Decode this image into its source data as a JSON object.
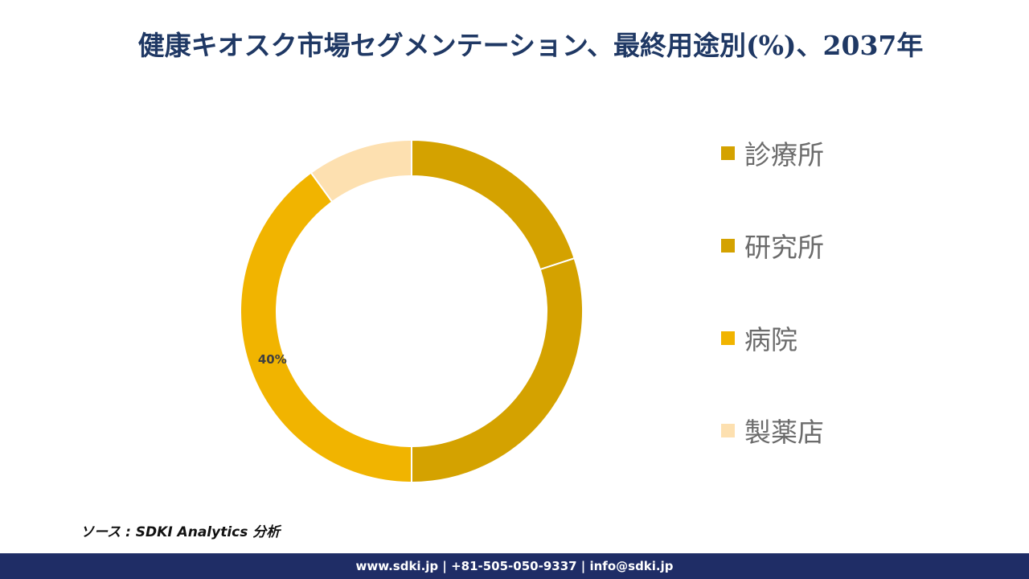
{
  "title": "健康キオスク市場セグメンテーション、最終用途別(%)、2037年",
  "source_text": "ソース : SDKI Analytics 分析",
  "footer_text": "www.sdki.jp | +81-505-050-9337 | info@sdki.jp",
  "chart_data": {
    "type": "pie",
    "title": "健康キオスク市場セグメンテーション、最終用途別(%)、2037年",
    "categories": [
      "診療所",
      "研究所",
      "病院",
      "製薬店"
    ],
    "values": [
      20,
      30,
      40,
      10
    ],
    "colors": [
      "#d4a200",
      "#d4a200",
      "#f1b400",
      "#fde0b0"
    ],
    "data_labels": [
      "",
      "",
      "40%",
      ""
    ],
    "legend_position": "right"
  }
}
